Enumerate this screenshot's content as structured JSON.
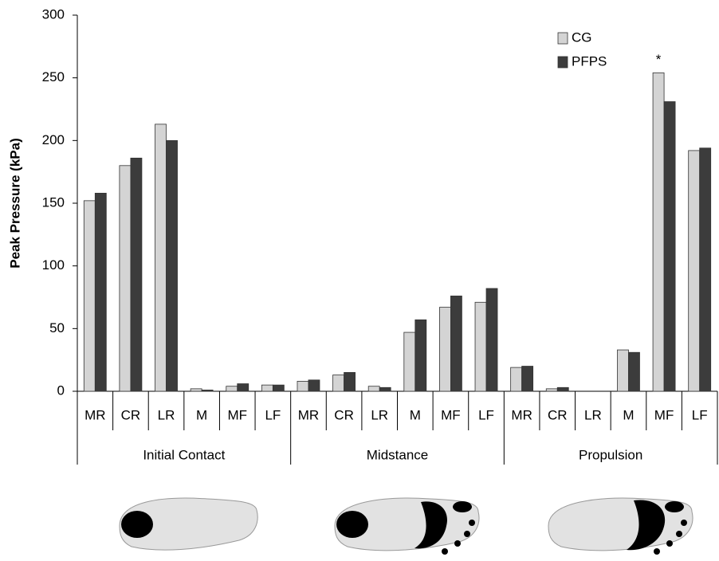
{
  "chart_data": {
    "type": "bar",
    "y_label": "Peak Pressure (kPa)",
    "categories": [
      "MR",
      "CR",
      "LR",
      "M",
      "MF",
      "LF",
      "MR",
      "CR",
      "LR",
      "M",
      "MF",
      "LF",
      "MR",
      "CR",
      "LR",
      "M",
      "MF",
      "LF"
    ],
    "group_labels": [
      "Initial Contact",
      "Midstance",
      "Propulsion"
    ],
    "series": [
      {
        "name": "CG",
        "color": "#d4d4d4",
        "values": [
          152,
          180,
          213,
          2,
          4,
          5,
          8,
          13,
          4,
          47,
          67,
          71,
          19,
          2,
          0,
          33,
          254,
          192
        ]
      },
      {
        "name": "PFPS",
        "color": "#3c3c3c",
        "values": [
          158,
          186,
          200,
          1,
          6,
          5,
          9,
          15,
          3,
          57,
          76,
          82,
          20,
          3,
          0,
          31,
          231,
          194
        ]
      }
    ],
    "annotation": "*",
    "ylim": [
      0,
      300
    ],
    "yticks": [
      0,
      50,
      100,
      150,
      200,
      250,
      300
    ],
    "legend": "top-right"
  }
}
